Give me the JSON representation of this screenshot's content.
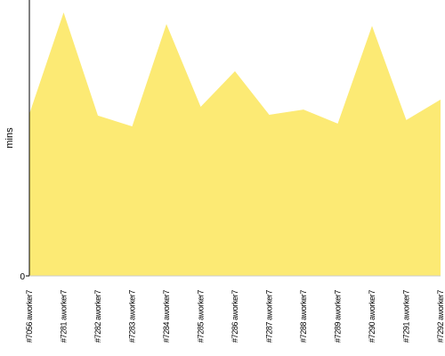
{
  "chart_data": {
    "type": "area",
    "y_label": "mins",
    "color": "#fcea74",
    "categories": [
      "#7056 aworker7",
      "#7281 aworker7",
      "#7282 aworker7",
      "#7283 aworker7",
      "#7284 aworker7",
      "#7285 aworker7",
      "#7286 aworker7",
      "#7287 aworker7",
      "#7288 aworker7",
      "#7289 aworker7",
      "#7290 aworker7",
      "#7291 aworker7",
      "#7292 aworker7"
    ],
    "values": [
      58.7,
      95.5,
      58.1,
      54.2,
      91.3,
      61.3,
      74.2,
      58.4,
      60.3,
      55.2,
      90.6,
      56.5,
      63.9
    ],
    "ylim": [
      0,
      100
    ],
    "yticks": [
      0
    ]
  }
}
